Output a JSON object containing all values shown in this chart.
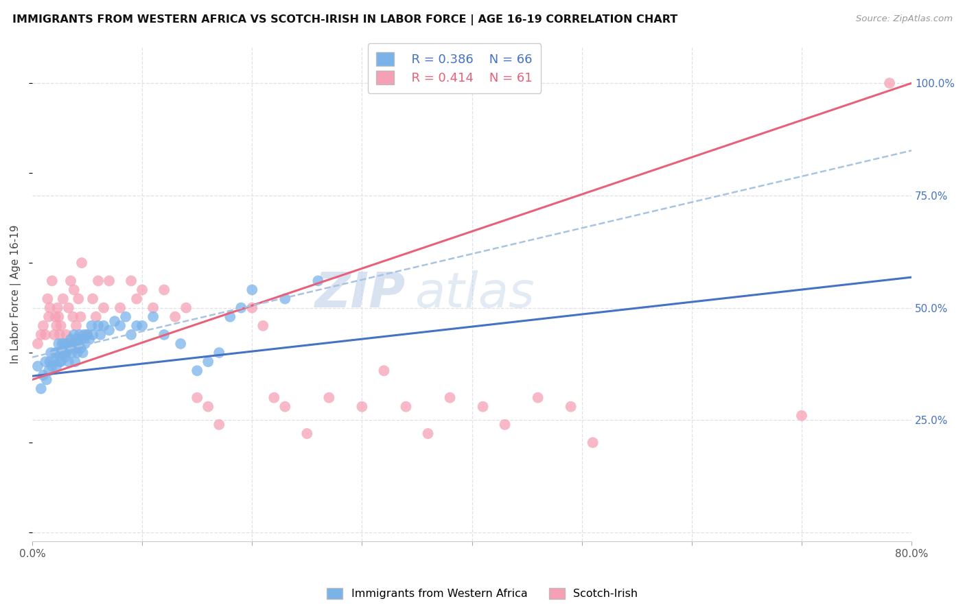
{
  "title": "IMMIGRANTS FROM WESTERN AFRICA VS SCOTCH-IRISH IN LABOR FORCE | AGE 16-19 CORRELATION CHART",
  "source": "Source: ZipAtlas.com",
  "ylabel": "In Labor Force | Age 16-19",
  "xlim": [
    0.0,
    0.8
  ],
  "ylim": [
    -0.02,
    1.08
  ],
  "xtick_positions": [
    0.0,
    0.1,
    0.2,
    0.3,
    0.4,
    0.5,
    0.6,
    0.7,
    0.8
  ],
  "xticklabels": [
    "0.0%",
    "",
    "",
    "",
    "",
    "",
    "",
    "",
    "80.0%"
  ],
  "yticks_right": [
    0.0,
    0.25,
    0.5,
    0.75,
    1.0
  ],
  "yticklabels_right": [
    "",
    "25.0%",
    "50.0%",
    "75.0%",
    "100.0%"
  ],
  "R_blue": 0.386,
  "N_blue": 66,
  "R_pink": 0.414,
  "N_pink": 61,
  "blue_scatter_color": "#7ab3ea",
  "pink_scatter_color": "#f5a0b5",
  "blue_line_color": "#4472c4",
  "pink_line_color": "#e8607a",
  "dashed_line_color": "#a8c4e0",
  "grid_color": "#e0e0ea",
  "watermark_zip": "ZIP",
  "watermark_atlas": "atlas",
  "background_color": "#ffffff",
  "blue_x": [
    0.005,
    0.008,
    0.01,
    0.012,
    0.013,
    0.015,
    0.016,
    0.017,
    0.018,
    0.02,
    0.021,
    0.022,
    0.023,
    0.024,
    0.025,
    0.025,
    0.026,
    0.027,
    0.028,
    0.029,
    0.03,
    0.03,
    0.031,
    0.032,
    0.033,
    0.034,
    0.035,
    0.036,
    0.037,
    0.038,
    0.039,
    0.04,
    0.04,
    0.041,
    0.042,
    0.043,
    0.044,
    0.045,
    0.046,
    0.047,
    0.048,
    0.05,
    0.052,
    0.054,
    0.055,
    0.06,
    0.062,
    0.065,
    0.07,
    0.075,
    0.08,
    0.085,
    0.09,
    0.095,
    0.1,
    0.11,
    0.12,
    0.135,
    0.15,
    0.16,
    0.17,
    0.18,
    0.19,
    0.2,
    0.23,
    0.26
  ],
  "blue_y": [
    0.37,
    0.32,
    0.35,
    0.38,
    0.34,
    0.36,
    0.38,
    0.4,
    0.37,
    0.38,
    0.4,
    0.37,
    0.4,
    0.42,
    0.38,
    0.4,
    0.38,
    0.42,
    0.4,
    0.42,
    0.39,
    0.41,
    0.4,
    0.42,
    0.38,
    0.41,
    0.43,
    0.4,
    0.42,
    0.44,
    0.38,
    0.41,
    0.43,
    0.4,
    0.42,
    0.44,
    0.41,
    0.43,
    0.4,
    0.44,
    0.42,
    0.44,
    0.43,
    0.46,
    0.44,
    0.46,
    0.44,
    0.46,
    0.45,
    0.47,
    0.46,
    0.48,
    0.44,
    0.46,
    0.46,
    0.48,
    0.44,
    0.42,
    0.36,
    0.38,
    0.4,
    0.48,
    0.5,
    0.54,
    0.52,
    0.56
  ],
  "pink_x": [
    0.005,
    0.008,
    0.01,
    0.012,
    0.014,
    0.015,
    0.016,
    0.018,
    0.02,
    0.021,
    0.022,
    0.023,
    0.024,
    0.025,
    0.026,
    0.028,
    0.03,
    0.031,
    0.033,
    0.035,
    0.037,
    0.038,
    0.04,
    0.042,
    0.044,
    0.045,
    0.05,
    0.055,
    0.058,
    0.06,
    0.065,
    0.07,
    0.08,
    0.09,
    0.095,
    0.1,
    0.11,
    0.12,
    0.13,
    0.14,
    0.15,
    0.16,
    0.17,
    0.2,
    0.21,
    0.22,
    0.23,
    0.25,
    0.27,
    0.3,
    0.32,
    0.34,
    0.36,
    0.38,
    0.41,
    0.43,
    0.46,
    0.49,
    0.51,
    0.7,
    0.78
  ],
  "pink_y": [
    0.42,
    0.44,
    0.46,
    0.44,
    0.52,
    0.48,
    0.5,
    0.56,
    0.44,
    0.48,
    0.46,
    0.5,
    0.48,
    0.44,
    0.46,
    0.52,
    0.4,
    0.44,
    0.5,
    0.56,
    0.48,
    0.54,
    0.46,
    0.52,
    0.48,
    0.6,
    0.44,
    0.52,
    0.48,
    0.56,
    0.5,
    0.56,
    0.5,
    0.56,
    0.52,
    0.54,
    0.5,
    0.54,
    0.48,
    0.5,
    0.3,
    0.28,
    0.24,
    0.5,
    0.46,
    0.3,
    0.28,
    0.22,
    0.3,
    0.28,
    0.36,
    0.28,
    0.22,
    0.3,
    0.28,
    0.24,
    0.3,
    0.28,
    0.2,
    0.26,
    1.0
  ],
  "blue_line": {
    "x0": 0.0,
    "y0": 0.348,
    "x1": 0.8,
    "y1": 0.568
  },
  "pink_line": {
    "x0": 0.0,
    "y0": 0.34,
    "x1": 0.8,
    "y1": 1.0
  },
  "dashed_line": {
    "x0": 0.0,
    "y0": 0.39,
    "x1": 0.8,
    "y1": 0.85
  }
}
